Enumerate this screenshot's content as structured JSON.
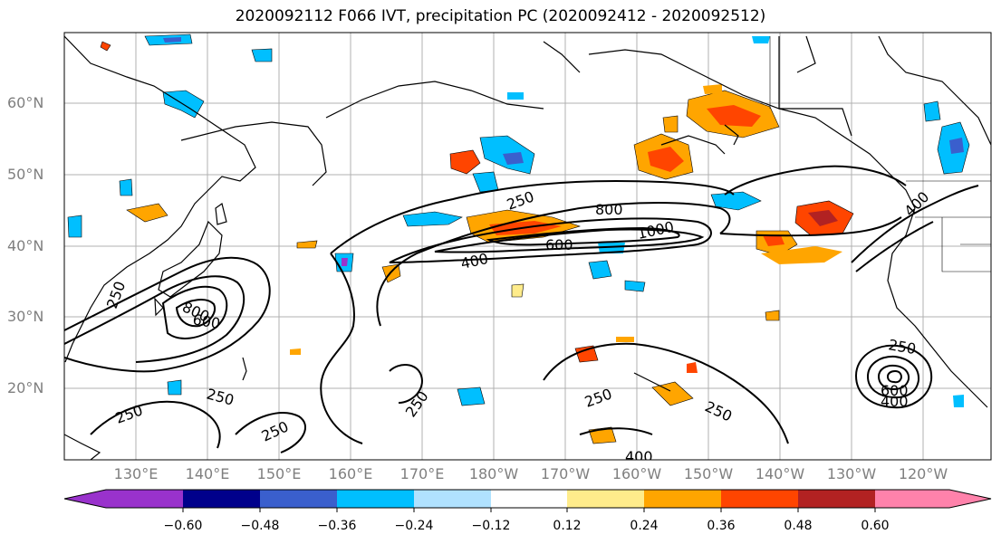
{
  "title": "2020092112 F066 IVT, precipitation PC (2020092412 - 2020092512)",
  "map": {
    "lat_labels": [
      "60°N",
      "50°N",
      "40°N",
      "30°N",
      "20°N"
    ],
    "lon_labels": [
      "130°E",
      "140°E",
      "150°E",
      "160°E",
      "170°E",
      "180°W",
      "170°W",
      "160°W",
      "150°W",
      "140°W",
      "130°W",
      "120°W"
    ],
    "contour_labels": [
      "250",
      "800",
      "1000",
      "600",
      "400",
      "250",
      "800",
      "600",
      "250",
      "250",
      "250",
      "250",
      "250",
      "250",
      "400",
      "250",
      "400",
      "600",
      "400"
    ],
    "ivt_contour_levels": [
      250,
      400,
      600,
      800,
      1000
    ]
  },
  "colorbar": {
    "tick_labels": [
      "−0.60",
      "−0.48",
      "−0.36",
      "−0.24",
      "−0.12",
      "0.12",
      "0.24",
      "0.36",
      "0.48",
      "0.60"
    ],
    "colors": [
      "#9932cc",
      "#00008b",
      "#3a5fcd",
      "#00bfff",
      "#b0e2ff",
      "#ffffff",
      "#ffec8b",
      "#ffa500",
      "#ff4500",
      "#b22222",
      "#ff82ab"
    ]
  }
}
